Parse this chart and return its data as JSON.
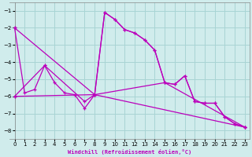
{
  "xlabel": "Windchill (Refroidissement éolien,°C)",
  "bg_color": "#d0ecec",
  "grid_color": "#a8d4d4",
  "line_color": "#bb00bb",
  "xlim": [
    -0.5,
    23.5
  ],
  "ylim": [
    -8.5,
    -0.5
  ],
  "xticks": [
    0,
    1,
    2,
    3,
    4,
    5,
    6,
    7,
    8,
    9,
    10,
    11,
    12,
    13,
    14,
    15,
    16,
    17,
    18,
    19,
    20,
    21,
    22,
    23
  ],
  "yticks": [
    -8,
    -7,
    -6,
    -5,
    -4,
    -3,
    -2,
    -1
  ],
  "series1_x": [
    0,
    1,
    2,
    3,
    4,
    5,
    6,
    7,
    8,
    9,
    10,
    11,
    12,
    13,
    14,
    15,
    16,
    17,
    18,
    19,
    20,
    21,
    22,
    23
  ],
  "series1_y": [
    -2.0,
    -5.8,
    -5.6,
    -4.2,
    -5.2,
    -5.8,
    -5.9,
    -6.7,
    -5.9,
    -1.1,
    -1.5,
    -2.1,
    -2.3,
    -2.7,
    -3.3,
    -5.2,
    -5.3,
    -4.8,
    -6.3,
    -6.4,
    -6.4,
    -7.2,
    -7.6,
    -7.8
  ],
  "series2_x": [
    0,
    3,
    7,
    8,
    9,
    10,
    11,
    12,
    13,
    14,
    15,
    16,
    17,
    18,
    19,
    20,
    21,
    22,
    23
  ],
  "series2_y": [
    -6.0,
    -4.2,
    -6.3,
    -5.9,
    -1.1,
    -1.5,
    -2.1,
    -2.3,
    -2.7,
    -3.3,
    -5.2,
    -5.3,
    -4.8,
    -6.3,
    -6.4,
    -6.4,
    -7.2,
    -7.6,
    -7.8
  ],
  "series3_x": [
    0,
    8,
    23
  ],
  "series3_y": [
    -6.0,
    -5.9,
    -7.8
  ],
  "series4_x": [
    0,
    8,
    15,
    23
  ],
  "series4_y": [
    -2.0,
    -5.9,
    -5.2,
    -7.8
  ]
}
